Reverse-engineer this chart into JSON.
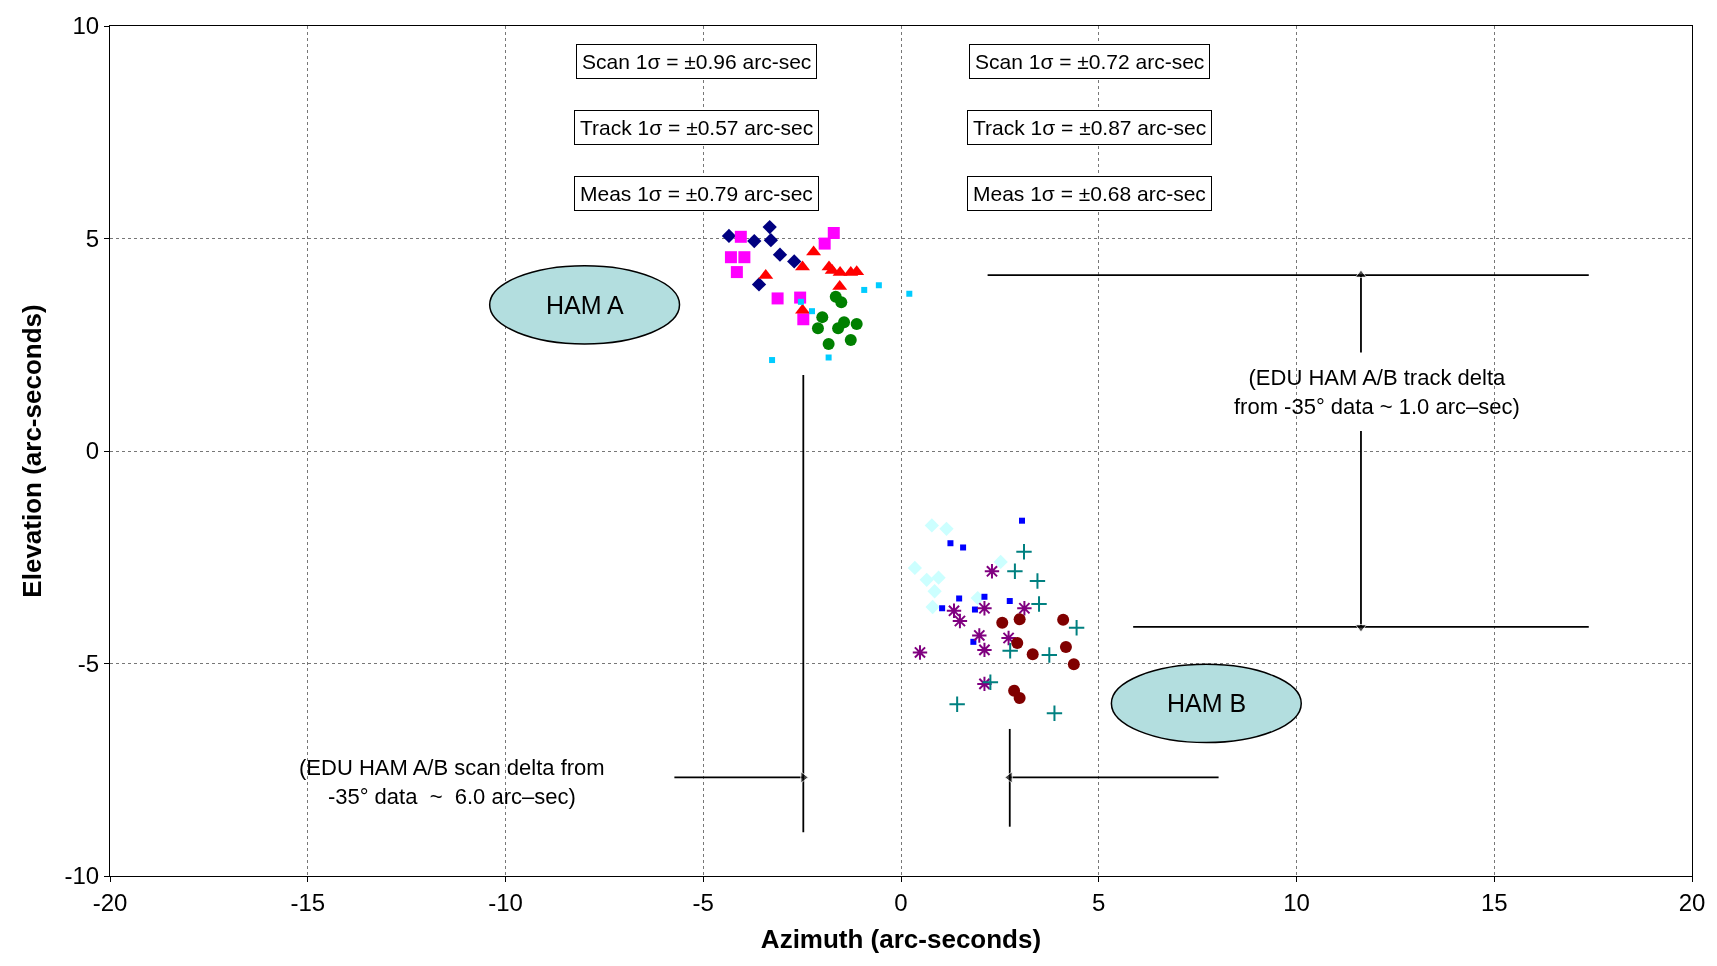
{
  "chart_data": {
    "type": "scatter",
    "xlabel": "Azimuth (arc-seconds)",
    "ylabel": "Elevation (arc-seconds)",
    "xlim": [
      -20,
      20
    ],
    "xticks": [
      -20,
      -15,
      -10,
      -5,
      0,
      5,
      10,
      15,
      20
    ],
    "ylim": [
      -10,
      10
    ],
    "yticks": [
      -10,
      -5,
      0,
      5,
      10
    ],
    "grid": true,
    "series": [
      {
        "color": "#000080",
        "marker": "diamond",
        "x": [
          -4.35,
          -3.71,
          -3.32,
          -3.29,
          -3.06,
          -2.7,
          -3.59
        ],
        "values": [
          5.06,
          4.94,
          5.27,
          4.96,
          4.62,
          4.46,
          3.92
        ]
      },
      {
        "color": "#ff00ff",
        "marker": "square",
        "x": [
          -4.05,
          -1.7,
          -1.93,
          -4.3,
          -3.96,
          -4.15,
          -3.12,
          -2.55,
          -2.47
        ],
        "values": [
          5.04,
          5.13,
          4.88,
          4.56,
          4.56,
          4.21,
          3.59,
          3.61,
          3.1
        ]
      },
      {
        "color": "#ff0000",
        "marker": "triangle",
        "x": [
          -2.21,
          -2.49,
          -3.42,
          -1.82,
          -1.74,
          -1.54,
          -1.27,
          -1.12,
          -1.55,
          -2.49
        ],
        "values": [
          4.68,
          4.33,
          4.13,
          4.33,
          4.25,
          4.2,
          4.2,
          4.22,
          3.87,
          3.31
        ]
      },
      {
        "color": "#008000",
        "marker": "circle",
        "x": [
          -1.65,
          -1.51,
          -1.99,
          -2.1,
          -1.59,
          -1.44,
          -1.12,
          -1.27,
          -1.83
        ],
        "values": [
          3.63,
          3.5,
          3.15,
          2.89,
          2.89,
          3.03,
          2.99,
          2.61,
          2.52
        ]
      },
      {
        "color": "#00ccff",
        "marker": "square",
        "x": [
          -3.26,
          -1.83,
          -2.53,
          -2.25,
          -0.93,
          -0.56,
          0.21
        ],
        "values": [
          2.14,
          2.2,
          3.51,
          3.29,
          3.79,
          3.9,
          3.7
        ]
      },
      {
        "color": "#ccffff",
        "marker": "diamond",
        "x": [
          0.78,
          1.15,
          0.35,
          0.65,
          0.95,
          0.85,
          0.8,
          1.94,
          2.52
        ],
        "values": [
          -1.75,
          -1.83,
          -2.75,
          -3.03,
          -2.98,
          -3.3,
          -3.67,
          -3.46,
          -2.61
        ]
      },
      {
        "color": "#0000ff",
        "marker": "square",
        "x": [
          3.06,
          1.25,
          1.57,
          1.47,
          2.11,
          2.75,
          1.04,
          1.87,
          1.83
        ],
        "values": [
          -1.64,
          -2.17,
          -2.27,
          -3.47,
          -3.43,
          -3.53,
          -3.7,
          -3.73,
          -4.49
        ]
      },
      {
        "color": "#800080",
        "x": [
          2.3,
          1.34,
          1.49,
          2.11,
          3.12,
          1.98,
          2.72,
          2.11,
          0.48,
          2.11
        ],
        "values": [
          -2.83,
          -3.76,
          -4.0,
          -3.7,
          -3.7,
          -4.34,
          -4.4,
          -4.68,
          -4.74,
          -5.48
        ]
      },
      {
        "color": "#008080",
        "marker": "cross",
        "x": [
          3.11,
          2.88,
          3.45,
          3.49,
          4.44,
          2.76,
          3.75,
          2.26,
          1.42,
          3.88
        ],
        "values": [
          -2.37,
          -2.83,
          -3.06,
          -3.6,
          -4.16,
          -4.7,
          -4.8,
          -5.44,
          -5.96,
          -6.17
        ]
      },
      {
        "color": "#800000",
        "marker": "circle",
        "x": [
          2.56,
          3.0,
          4.1,
          2.94,
          3.33,
          4.17,
          4.37,
          2.86,
          3.0
        ],
        "values": [
          -4.04,
          -3.96,
          -3.97,
          -4.52,
          -4.78,
          -4.61,
          -5.02,
          -5.64,
          -5.81
        ]
      },
      {
        "type": "line",
        "color": "#000000",
        "marker": "none",
        "x": [
          -2.47,
          -2.47
        ],
        "values": [
          1.79,
          -8.97
        ]
      },
      {
        "type": "line",
        "color": "#000000",
        "marker": "none",
        "x": [
          2.75,
          2.75
        ],
        "values": [
          -6.54,
          -8.84
        ]
      },
      {
        "type": "line",
        "color": "#000000",
        "marker": "none",
        "x": [
          2.19,
          17.39
        ],
        "values": [
          4.14,
          4.14
        ]
      },
      {
        "type": "line",
        "color": "#000000",
        "marker": "none",
        "x": [
          5.87,
          17.39
        ],
        "values": [
          -4.14,
          -4.14
        ]
      },
      {
        "type": "line",
        "color": "#000000",
        "marker": "triangle",
        "x": [
          -5.73,
          -2.47
        ],
        "values": [
          -7.68,
          -7.68
        ]
      },
      {
        "type": "line",
        "color": "#000000",
        "marker": "triangle",
        "x": [
          8.03,
          2.75
        ],
        "values": [
          -7.68,
          -7.68
        ]
      },
      {
        "type": "line",
        "color": "#000000",
        "marker": "triangle",
        "x": [
          11.63,
          11.63
        ],
        "values": [
          2.32,
          4.14
        ]
      },
      {
        "type": "line",
        "color": "#000000",
        "marker": "triangle",
        "x": [
          11.63,
          11.63
        ],
        "values": [
          0.47,
          -4.14
        ]
      }
    ],
    "annotations": [
      "Scan 1σ = ±0.96 arc-sec",
      "Scan 1σ = ±0.72 arc-sec",
      "Track 1σ = ±0.57 arc-sec",
      "Track 1σ = ±0.87 arc-sec",
      "Meas 1σ = ±0.79 arc-sec",
      "Meas 1σ = ±0.68 arc-sec",
      "HAM A",
      "HAM B",
      "(EDU HAM A/B scan delta from\n-35° data  ~  6.0 arc–sec)",
      "(EDU HAM A/B track delta\nfrom -35° data ~ 1.0 arc–sec)"
    ]
  }
}
